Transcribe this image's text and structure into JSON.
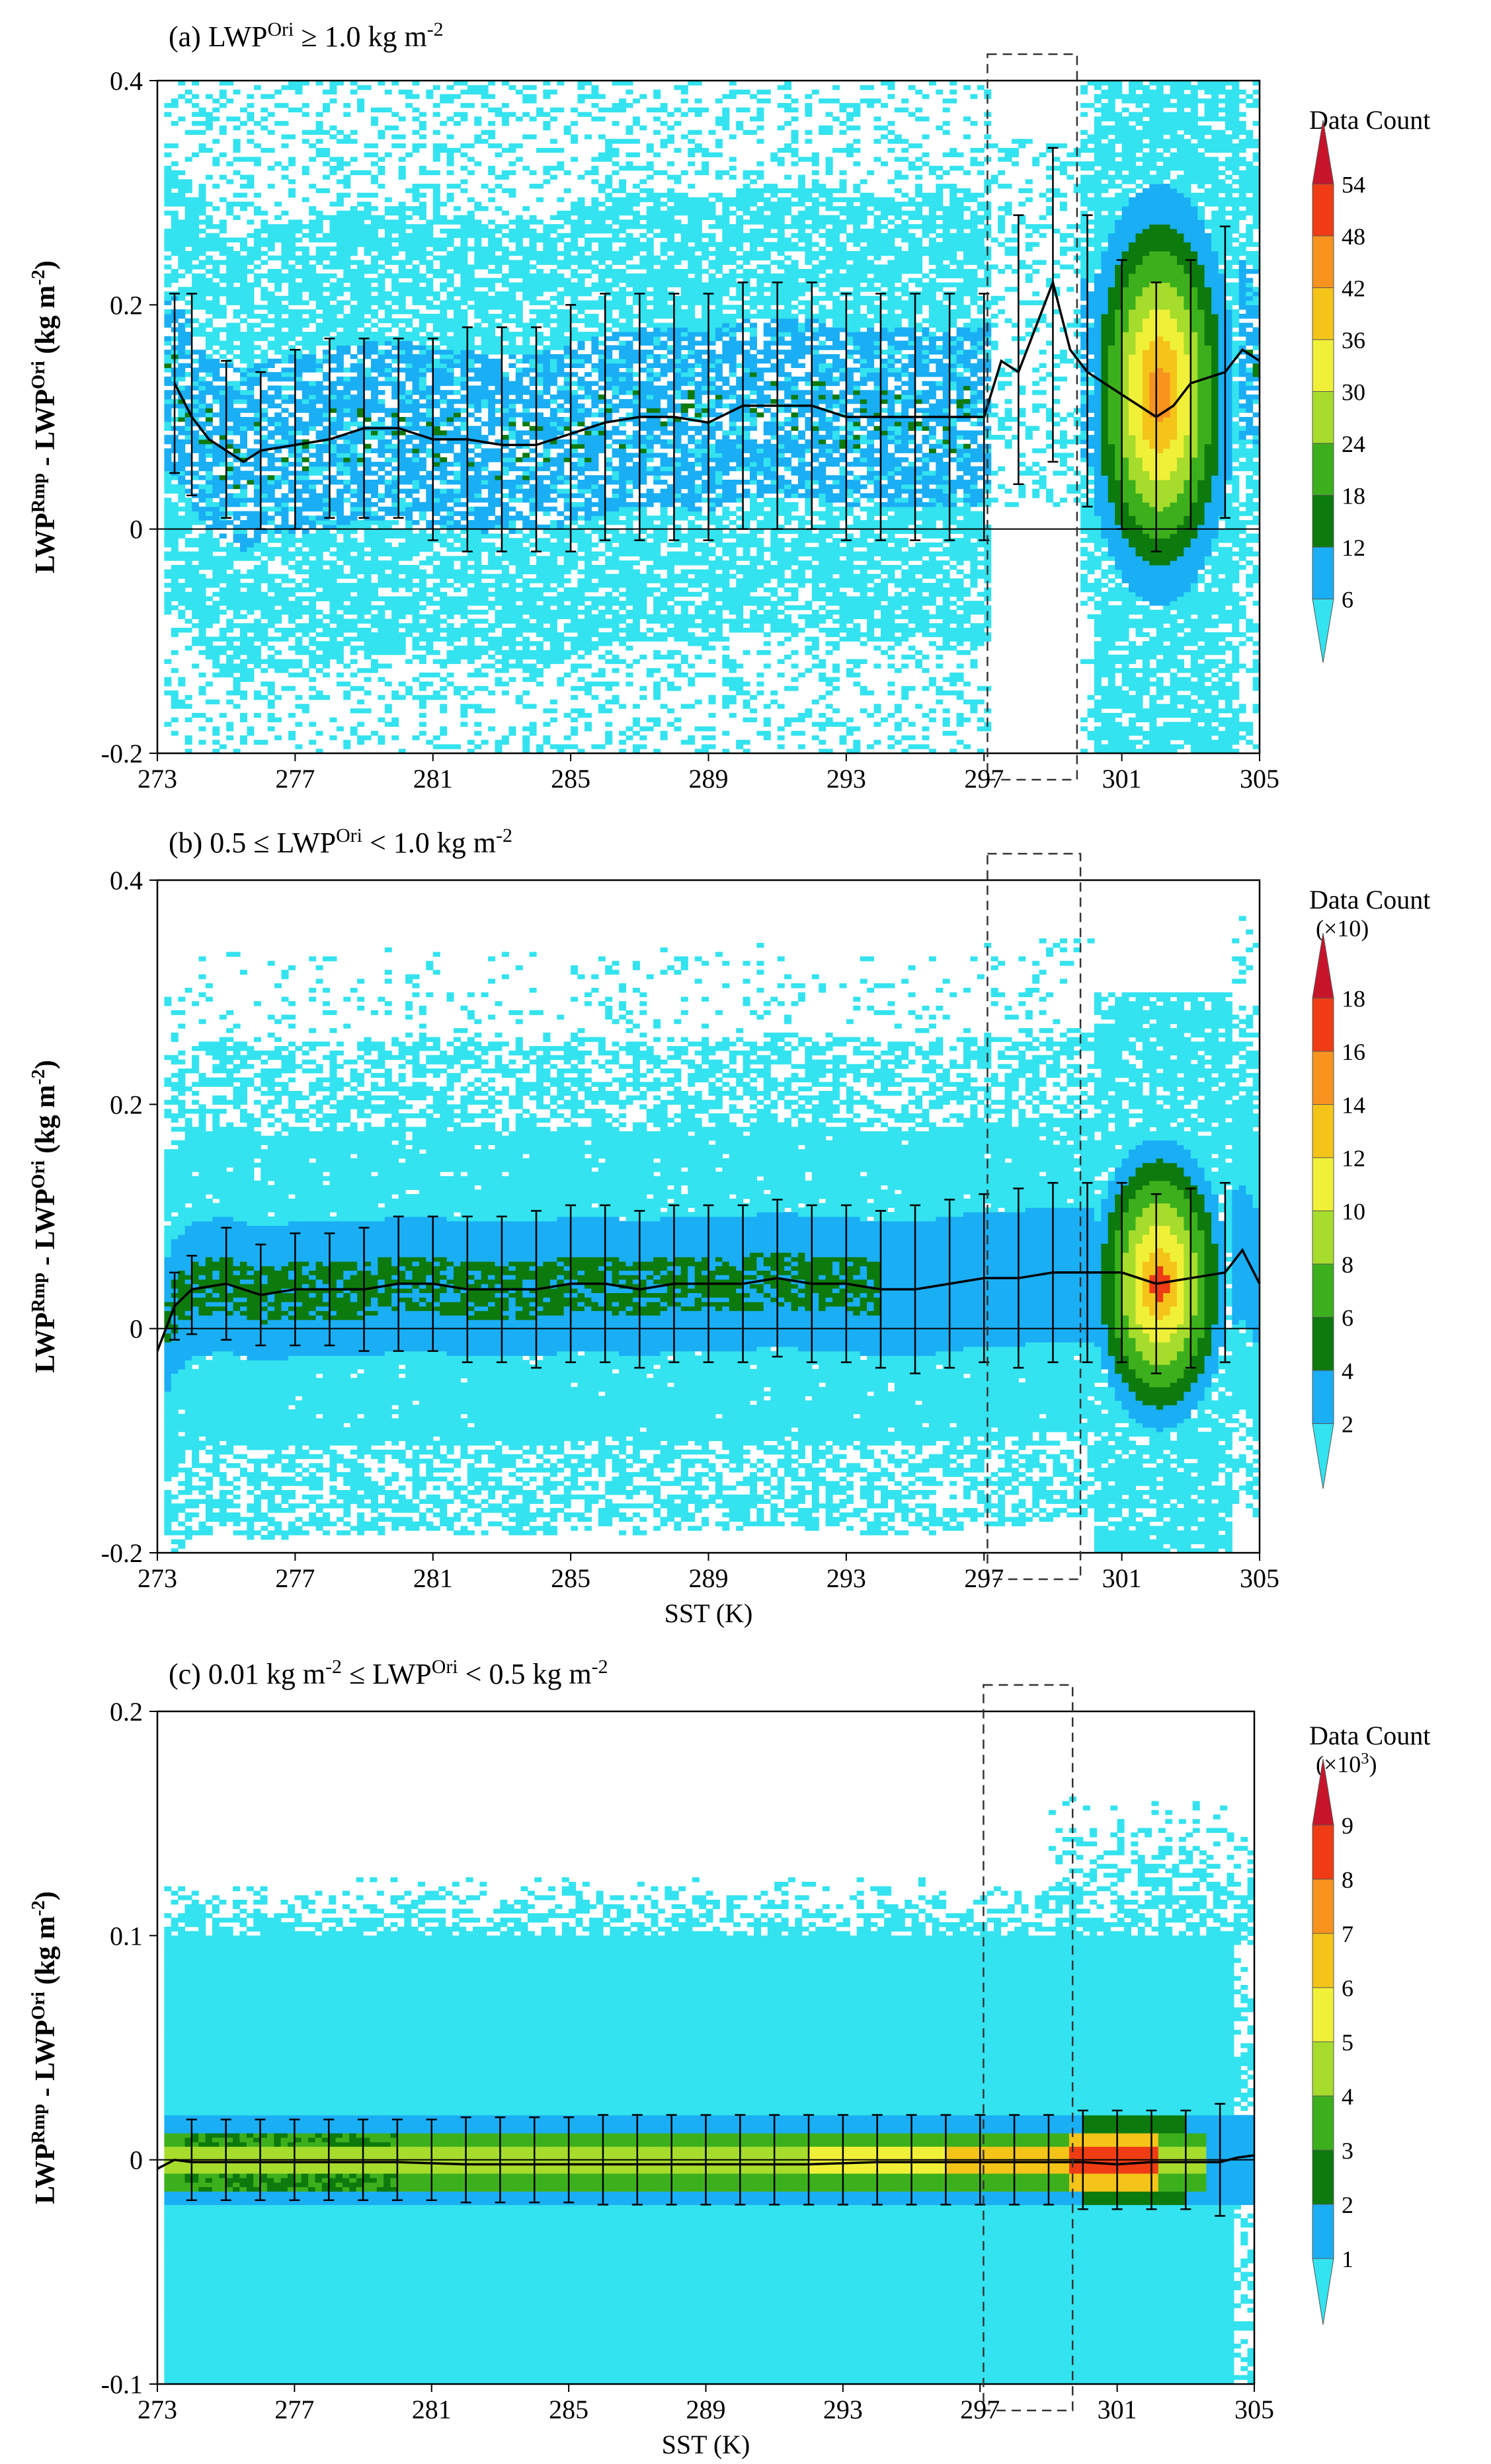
{
  "figure": {
    "shared_xlabel": "SST (K)"
  },
  "colorbar_colors": [
    "#33e3ef",
    "#1aaef5",
    "#0d7a0d",
    "#3cb01c",
    "#a6dc2c",
    "#f0f038",
    "#f5c419",
    "#f7931e",
    "#f03c14",
    "#c8142b"
  ],
  "chart_data": [
    {
      "type": "heatmap",
      "panel": "a",
      "title": {
        "prefix": "(a) LWP",
        "sup": "Ori",
        "rel": " ≥ 1.0 kg m",
        "unit_sup": "-2"
      },
      "xlabel": "",
      "ylabel": {
        "a": "LWP",
        "a_sup": "Rmp",
        "b": " - LWP",
        "b_sup": "Ori",
        "c": " (kg m",
        "c_sup": "-2",
        "d": ")"
      },
      "xlim": [
        273,
        305
      ],
      "ylim": [
        -0.2,
        0.4
      ],
      "xticks": [
        "273",
        "277",
        "281",
        "285",
        "289",
        "293",
        "297",
        "301",
        "305"
      ],
      "yticks": [
        "-0.2",
        "0",
        "0.2",
        "0.4"
      ],
      "dashed_box_sst": [
        297.1,
        299.7
      ],
      "colorbar": {
        "title": "Data Count",
        "scale_label": "",
        "levels": [
          "6",
          "12",
          "18",
          "24",
          "30",
          "36",
          "42",
          "48",
          "54"
        ]
      },
      "mean_curve": {
        "x": [
          273.5,
          274,
          274.5,
          275,
          275.5,
          276,
          277,
          278,
          279,
          280,
          281,
          282,
          283,
          284,
          285,
          286,
          287,
          288,
          289,
          290,
          291,
          292,
          293,
          294,
          295,
          296,
          297,
          297.5,
          298,
          298.5,
          299,
          299.5,
          300,
          301,
          301.5,
          302,
          302.5,
          303,
          304,
          304.5,
          305
        ],
        "y": [
          0.13,
          0.1,
          0.08,
          0.07,
          0.06,
          0.07,
          0.075,
          0.08,
          0.09,
          0.09,
          0.08,
          0.08,
          0.075,
          0.075,
          0.085,
          0.095,
          0.1,
          0.1,
          0.095,
          0.11,
          0.11,
          0.11,
          0.1,
          0.1,
          0.1,
          0.1,
          0.1,
          0.15,
          0.14,
          0.18,
          0.22,
          0.16,
          0.14,
          0.12,
          0.11,
          0.1,
          0.11,
          0.13,
          0.14,
          0.16,
          0.15
        ]
      },
      "error_bars": {
        "x": [
          273.5,
          274,
          275,
          276,
          277,
          278,
          279,
          280,
          281,
          282,
          283,
          284,
          285,
          286,
          287,
          288,
          289,
          290,
          291,
          292,
          293,
          294,
          295,
          296,
          297,
          298,
          299,
          300,
          301,
          302,
          303,
          304
        ],
        "mean": [
          0.13,
          0.12,
          0.08,
          0.07,
          0.08,
          0.09,
          0.09,
          0.09,
          0.08,
          0.08,
          0.08,
          0.08,
          0.09,
          0.1,
          0.1,
          0.1,
          0.1,
          0.11,
          0.11,
          0.11,
          0.1,
          0.1,
          0.1,
          0.1,
          0.1,
          0.16,
          0.2,
          0.15,
          0.12,
          0.1,
          0.12,
          0.14
        ],
        "std": [
          0.08,
          0.09,
          0.07,
          0.07,
          0.08,
          0.08,
          0.08,
          0.08,
          0.09,
          0.1,
          0.1,
          0.1,
          0.11,
          0.11,
          0.11,
          0.11,
          0.11,
          0.11,
          0.11,
          0.11,
          0.11,
          0.11,
          0.11,
          0.11,
          0.11,
          0.12,
          0.14,
          0.13,
          0.12,
          0.12,
          0.12,
          0.13
        ]
      }
    },
    {
      "type": "heatmap",
      "panel": "b",
      "title": {
        "prefix": "(b) 0.5 ≤ LWP",
        "sup": "Ori",
        "rel": " < 1.0 kg m",
        "unit_sup": "-2"
      },
      "xlabel": "SST (K)",
      "ylabel": {
        "a": "LWP",
        "a_sup": "Rmp",
        "b": " - LWP",
        "b_sup": "Ori",
        "c": " (kg m",
        "c_sup": "-2",
        "d": ")"
      },
      "xlim": [
        273,
        305
      ],
      "ylim": [
        -0.2,
        0.4
      ],
      "xticks": [
        "273",
        "277",
        "281",
        "285",
        "289",
        "293",
        "297",
        "301",
        "305"
      ],
      "yticks": [
        "-0.2",
        "0",
        "0.2",
        "0.4"
      ],
      "dashed_box_sst": [
        297.1,
        299.8
      ],
      "colorbar": {
        "title": "Data Count",
        "scale_label": "(×10)",
        "levels": [
          "2",
          "4",
          "6",
          "8",
          "10",
          "12",
          "14",
          "16",
          "18"
        ]
      },
      "mean_curve": {
        "x": [
          273,
          273.5,
          274,
          275,
          276,
          277,
          278,
          279,
          280,
          281,
          282,
          283,
          284,
          285,
          286,
          287,
          288,
          289,
          290,
          291,
          292,
          293,
          294,
          295,
          296,
          297,
          298,
          299,
          300,
          301,
          302,
          303,
          304,
          304.5,
          305
        ],
        "y": [
          -0.02,
          0.02,
          0.035,
          0.04,
          0.03,
          0.035,
          0.035,
          0.035,
          0.04,
          0.04,
          0.035,
          0.035,
          0.035,
          0.04,
          0.04,
          0.035,
          0.04,
          0.04,
          0.04,
          0.045,
          0.04,
          0.04,
          0.035,
          0.035,
          0.04,
          0.045,
          0.045,
          0.05,
          0.05,
          0.05,
          0.04,
          0.045,
          0.05,
          0.07,
          0.04
        ]
      },
      "error_bars": {
        "x": [
          273.5,
          274,
          275,
          276,
          277,
          278,
          279,
          280,
          281,
          282,
          283,
          284,
          285,
          286,
          287,
          288,
          289,
          290,
          291,
          292,
          293,
          294,
          295,
          296,
          297,
          298,
          299,
          300,
          301,
          302,
          303,
          304
        ],
        "mean": [
          0.02,
          0.03,
          0.04,
          0.03,
          0.035,
          0.035,
          0.035,
          0.04,
          0.04,
          0.035,
          0.035,
          0.035,
          0.04,
          0.04,
          0.035,
          0.04,
          0.04,
          0.04,
          0.045,
          0.04,
          0.04,
          0.035,
          0.035,
          0.04,
          0.045,
          0.045,
          0.05,
          0.05,
          0.05,
          0.04,
          0.045,
          0.05
        ],
        "std": [
          0.03,
          0.035,
          0.05,
          0.045,
          0.05,
          0.05,
          0.055,
          0.06,
          0.06,
          0.065,
          0.065,
          0.07,
          0.07,
          0.07,
          0.07,
          0.07,
          0.07,
          0.07,
          0.07,
          0.07,
          0.07,
          0.07,
          0.075,
          0.075,
          0.075,
          0.08,
          0.08,
          0.08,
          0.08,
          0.08,
          0.08,
          0.08
        ]
      }
    },
    {
      "type": "heatmap",
      "panel": "c",
      "title": {
        "prefix": "(c) 0.01 kg m",
        "prefix_sup": "-2",
        "rel_a": " ≤ LWP",
        "sup": "Ori",
        "rel": " < 0.5 kg m",
        "unit_sup": "-2"
      },
      "xlabel": "SST (K)",
      "ylabel": {
        "a": "LWP",
        "a_sup": "Rmp",
        "b": " - LWP",
        "b_sup": "Ori",
        "c": " (kg m",
        "c_sup": "-2",
        "d": ")"
      },
      "xlim": [
        273,
        305
      ],
      "ylim": [
        -0.1,
        0.2
      ],
      "xticks": [
        "273",
        "277",
        "281",
        "285",
        "289",
        "293",
        "297",
        "301",
        "305"
      ],
      "yticks": [
        "-0.1",
        "0",
        "0.1",
        "0.2"
      ],
      "dashed_box_sst": [
        297.1,
        299.7
      ],
      "colorbar": {
        "title": "Data Count",
        "scale_label": "(×10",
        "scale_sup": "3",
        "scale_end": ")",
        "levels": [
          "1",
          "2",
          "3",
          "4",
          "5",
          "6",
          "7",
          "8",
          "9"
        ]
      },
      "mean_curve": {
        "x": [
          273,
          273.5,
          274,
          276,
          278,
          280,
          282,
          284,
          286,
          288,
          290,
          292,
          294,
          296,
          298,
          299,
          300,
          301,
          302,
          303,
          304,
          304.5,
          305
        ],
        "y": [
          -0.004,
          0.0,
          -0.001,
          -0.001,
          -0.001,
          -0.001,
          -0.002,
          -0.002,
          -0.002,
          -0.002,
          -0.002,
          -0.002,
          -0.001,
          -0.001,
          -0.001,
          -0.001,
          -0.001,
          -0.002,
          -0.001,
          -0.001,
          -0.001,
          0.001,
          0.002
        ]
      },
      "error_bars": {
        "x": [
          274,
          275,
          276,
          277,
          278,
          279,
          280,
          281,
          282,
          283,
          284,
          285,
          286,
          287,
          288,
          289,
          290,
          291,
          292,
          293,
          294,
          295,
          296,
          297,
          298,
          299,
          300,
          301,
          302,
          303,
          304
        ],
        "mean": [
          0,
          0,
          0,
          0,
          0,
          0,
          0,
          0,
          0,
          0,
          0,
          0,
          0,
          0,
          0,
          0,
          0,
          0,
          0,
          0,
          0,
          0,
          0,
          0,
          0,
          0,
          0,
          0,
          0,
          0,
          0
        ],
        "std": [
          0.018,
          0.018,
          0.018,
          0.018,
          0.018,
          0.018,
          0.018,
          0.018,
          0.019,
          0.019,
          0.019,
          0.019,
          0.02,
          0.02,
          0.02,
          0.02,
          0.02,
          0.02,
          0.02,
          0.02,
          0.02,
          0.02,
          0.02,
          0.02,
          0.02,
          0.02,
          0.022,
          0.022,
          0.022,
          0.022,
          0.025
        ]
      }
    }
  ]
}
